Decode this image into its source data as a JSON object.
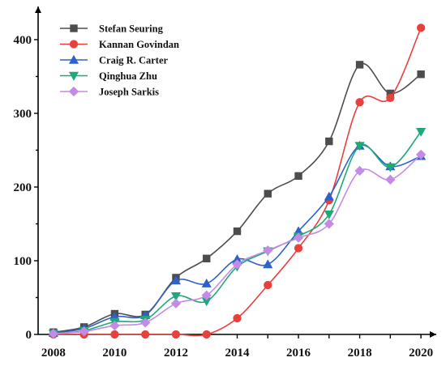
{
  "chart_data": {
    "type": "line",
    "title": "",
    "xlabel": "",
    "ylabel": "",
    "x": [
      2008,
      2009,
      2010,
      2011,
      2012,
      2013,
      2014,
      2015,
      2016,
      2017,
      2018,
      2019,
      2020
    ],
    "xticks": [
      "2008",
      "2010",
      "2012",
      "2014",
      "2016",
      "2018",
      "2020"
    ],
    "yticks": [
      "0",
      "100",
      "200",
      "300",
      "400"
    ],
    "xlim": [
      2007.5,
      2020.5
    ],
    "ylim": [
      0,
      445
    ],
    "grid": false,
    "legend_position": "top-left",
    "series": [
      {
        "name": "Stefan Seuring",
        "color": "#4d4d4d",
        "marker": "square",
        "values": [
          3,
          10,
          28,
          27,
          77,
          103,
          140,
          191,
          215,
          262,
          366,
          327,
          353
        ]
      },
      {
        "name": "Kannan Govindan",
        "color": "#e8413c",
        "marker": "circle",
        "values": [
          0,
          0,
          0,
          0,
          0,
          0,
          22,
          67,
          117,
          182,
          315,
          321,
          416
        ]
      },
      {
        "name": "Craig R. Carter",
        "color": "#2e62c9",
        "marker": "triangle-up",
        "values": [
          2,
          8,
          24,
          26,
          73,
          69,
          102,
          95,
          140,
          187,
          256,
          228,
          242
        ]
      },
      {
        "name": "Qinghua Zhu",
        "color": "#1fa87a",
        "marker": "triangle-down",
        "values": [
          1,
          5,
          17,
          20,
          52,
          45,
          92,
          113,
          133,
          163,
          256,
          227,
          275
        ]
      },
      {
        "name": "Joseph Sarkis",
        "color": "#c48be6",
        "marker": "diamond",
        "values": [
          1,
          4,
          12,
          16,
          42,
          53,
          95,
          114,
          131,
          150,
          222,
          210,
          244
        ]
      }
    ]
  }
}
